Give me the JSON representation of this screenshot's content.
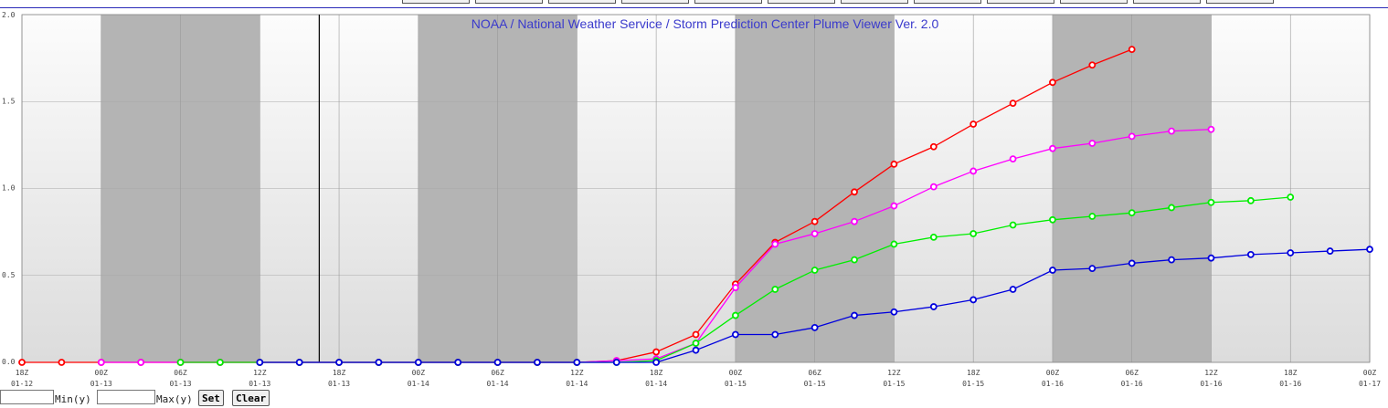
{
  "chart_data": {
    "type": "line",
    "title": "NOAA / National Weather Service / Storm Prediction Center Plume Viewer Ver. 2.0",
    "ylim": [
      0,
      2.0
    ],
    "y_ticks": [
      "0.0",
      "0.5",
      "1.0",
      "1.5",
      "2.0"
    ],
    "x_tick_labels": [
      [
        "18Z",
        "01-12"
      ],
      [
        "00Z",
        "01-13"
      ],
      [
        "06Z",
        "01-13"
      ],
      [
        "12Z",
        "01-13"
      ],
      [
        "18Z",
        "01-13"
      ],
      [
        "00Z",
        "01-14"
      ],
      [
        "06Z",
        "01-14"
      ],
      [
        "12Z",
        "01-14"
      ],
      [
        "18Z",
        "01-14"
      ],
      [
        "00Z",
        "01-15"
      ],
      [
        "06Z",
        "01-15"
      ],
      [
        "12Z",
        "01-15"
      ],
      [
        "18Z",
        "01-15"
      ],
      [
        "00Z",
        "01-16"
      ],
      [
        "06Z",
        "01-16"
      ],
      [
        "12Z",
        "01-16"
      ],
      [
        "18Z",
        "01-16"
      ],
      [
        "00Z",
        "01-17"
      ]
    ],
    "x_range_hours": [
      0,
      102
    ],
    "night_shading_hours": [
      [
        6,
        18
      ],
      [
        30,
        42
      ],
      [
        54,
        66
      ],
      [
        78,
        90
      ]
    ],
    "current_time_hour": 22.5,
    "grid": true,
    "series": [
      {
        "color": "#ff0000",
        "x": [
          0,
          3,
          6,
          9,
          12,
          15,
          18,
          21,
          24,
          27,
          30,
          33,
          36,
          39,
          42,
          45,
          48,
          51,
          54,
          57,
          60,
          63,
          66,
          69,
          72,
          75,
          78,
          81,
          84
        ],
        "values": [
          0,
          0,
          0,
          0,
          0,
          0,
          0,
          0,
          0,
          0,
          0,
          0,
          0,
          0,
          0,
          0.01,
          0.06,
          0.16,
          0.45,
          0.69,
          0.81,
          0.98,
          1.14,
          1.24,
          1.37,
          1.49,
          1.61,
          1.71,
          1.8
        ]
      },
      {
        "color": "#ff00ff",
        "x": [
          6,
          9,
          12,
          15,
          18,
          21,
          24,
          27,
          30,
          33,
          36,
          39,
          42,
          45,
          48,
          51,
          54,
          57,
          60,
          63,
          66,
          69,
          72,
          75,
          78,
          81,
          84,
          87,
          90
        ],
        "values": [
          0,
          0,
          0,
          0,
          0,
          0,
          0,
          0,
          0,
          0,
          0,
          0,
          0,
          0.01,
          0.02,
          0.11,
          0.43,
          0.68,
          0.74,
          0.81,
          0.9,
          1.01,
          1.1,
          1.17,
          1.23,
          1.26,
          1.3,
          1.33,
          1.34
        ]
      },
      {
        "color": "#00ee00",
        "x": [
          12,
          15,
          18,
          21,
          24,
          27,
          30,
          33,
          36,
          39,
          42,
          45,
          48,
          51,
          54,
          57,
          60,
          63,
          66,
          69,
          72,
          75,
          78,
          81,
          84,
          87,
          90,
          93,
          96
        ],
        "values": [
          0,
          0,
          0,
          0,
          0,
          0,
          0,
          0,
          0,
          0,
          0,
          0,
          0.01,
          0.11,
          0.27,
          0.42,
          0.53,
          0.59,
          0.68,
          0.72,
          0.74,
          0.79,
          0.82,
          0.84,
          0.86,
          0.89,
          0.92,
          0.93,
          0.95
        ]
      },
      {
        "color": "#0000dd",
        "x": [
          18,
          21,
          24,
          27,
          30,
          33,
          36,
          39,
          42,
          45,
          48,
          51,
          54,
          57,
          60,
          63,
          66,
          69,
          72,
          75,
          78,
          81,
          84,
          87,
          90,
          93,
          96,
          99,
          102
        ],
        "values": [
          0,
          0,
          0,
          0,
          0,
          0,
          0,
          0,
          0,
          0,
          0,
          0.07,
          0.16,
          0.16,
          0.2,
          0.27,
          0.29,
          0.32,
          0.36,
          0.42,
          0.53,
          0.54,
          0.57,
          0.59,
          0.6,
          0.62,
          0.63,
          0.64,
          0.65
        ]
      }
    ]
  },
  "controls": {
    "min_label": "Min(y)",
    "max_label": "Max(y)",
    "set_button": "Set",
    "clear_button": "Clear",
    "min_value": "",
    "max_value": ""
  }
}
